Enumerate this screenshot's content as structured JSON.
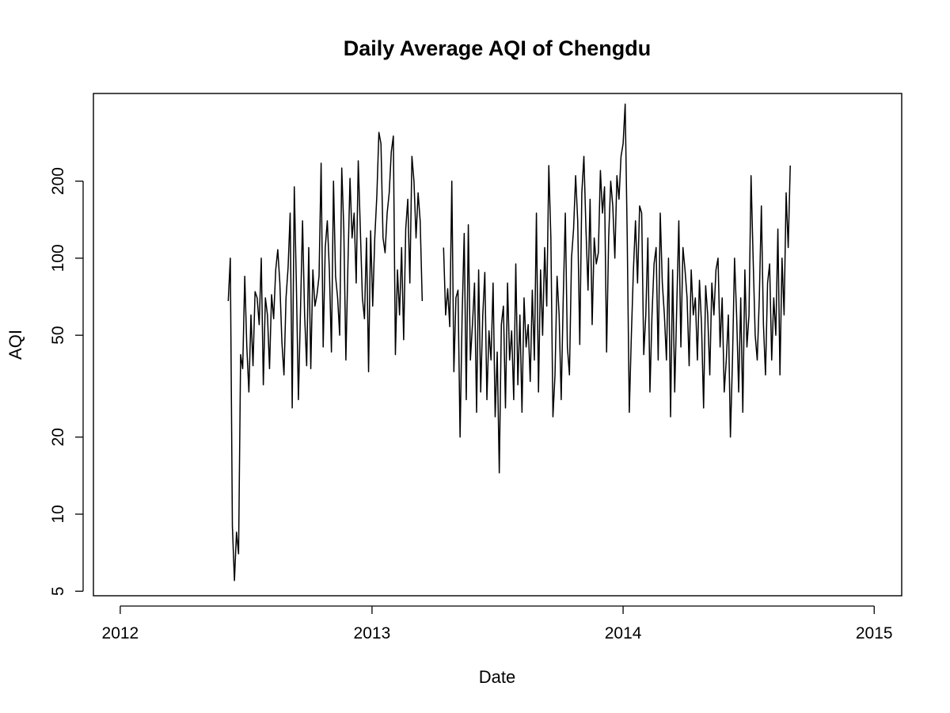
{
  "chart_data": {
    "type": "line",
    "title": "Daily Average AQI of Chengdu",
    "xlabel": "Date",
    "ylabel": "AQI",
    "y_scale": "log",
    "xlim": [
      "2011-11-23",
      "2015-02-10"
    ],
    "ylim": [
      4.8,
      440
    ],
    "x_ticks": [
      {
        "value": "2012-01-01",
        "label": "2012"
      },
      {
        "value": "2013-01-01",
        "label": "2013"
      },
      {
        "value": "2014-01-01",
        "label": "2014"
      },
      {
        "value": "2015-01-01",
        "label": "2015"
      }
    ],
    "y_ticks": [
      {
        "value": 5,
        "label": "5"
      },
      {
        "value": 10,
        "label": "10"
      },
      {
        "value": 20,
        "label": "20"
      },
      {
        "value": 50,
        "label": "50"
      },
      {
        "value": 100,
        "label": "100"
      },
      {
        "value": 200,
        "label": "200"
      }
    ],
    "grid": false,
    "legend": "none",
    "line_color": "#000000",
    "series": [
      {
        "segments": [
          {
            "start": "2012-06-06",
            "step_days": 3,
            "values": [
              68,
              100,
              9,
              5.5,
              8.5,
              7,
              42,
              37,
              85,
              45,
              30,
              60,
              38,
              74,
              70,
              55,
              100,
              32,
              70,
              60,
              37,
              72,
              58,
              90,
              108,
              80,
              47,
              35,
              70,
              92,
              150,
              26,
              190,
              80,
              28,
              62,
              140,
              60,
              38,
              110,
              37,
              90,
              65,
              72,
              85,
              235,
              45,
              110,
              140,
              90,
              43,
              200,
              85,
              70,
              50,
              225,
              130,
              40,
              95,
              205,
              120,
              150,
              80,
              240,
              130,
              70,
              58,
              120,
              36,
              128,
              65,
              120,
              175,
              310,
              280,
              120,
              105,
              150,
              180,
              260,
              300,
              42,
              90,
              60,
              110,
              48,
              130,
              170,
              80,
              250,
              200,
              120,
              180,
              140,
              68
            ]
          },
          {
            "start": "2013-04-15",
            "step_days": 3,
            "values": [
              110,
              60,
              76,
              54,
              200,
              36,
              70,
              75,
              20,
              60,
              125,
              28,
              135,
              40,
              55,
              80,
              25,
              90,
              30,
              60,
              88,
              28,
              52,
              40,
              80,
              24,
              43,
              14.5,
              55,
              65,
              26,
              80,
              40,
              52,
              28,
              95,
              32,
              60,
              25,
              70,
              45,
              55,
              33,
              75,
              40,
              150,
              30,
              90,
              50,
              110,
              65,
              230,
              120,
              24,
              35,
              85,
              60,
              28,
              70,
              150,
              45,
              35,
              100,
              130,
              210,
              140,
              46,
              180,
              250,
              130,
              75,
              170,
              55,
              120,
              95,
              105,
              220,
              150,
              190,
              43,
              120,
              200,
              160,
              100,
              210,
              170,
              250,
              280,
              400,
              120,
              25,
              50,
              90,
              140,
              80,
              160,
              150,
              42,
              60,
              120,
              30,
              60,
              95,
              110,
              40,
              150,
              80,
              60,
              40,
              100,
              24,
              90,
              30,
              65,
              140,
              45,
              110,
              90,
              70,
              38,
              90,
              60,
              70,
              40,
              82,
              55,
              26,
              78,
              60,
              35,
              80,
              60,
              90,
              100,
              45,
              70,
              30,
              40,
              60,
              20,
              40,
              100,
              60,
              30,
              70,
              25,
              90,
              45,
              60,
              210,
              100,
              50,
              40,
              70,
              160,
              55,
              35,
              80,
              95,
              40,
              70,
              50,
              130,
              35,
              100,
              60,
              180,
              110,
              230
            ]
          }
        ]
      }
    ]
  }
}
